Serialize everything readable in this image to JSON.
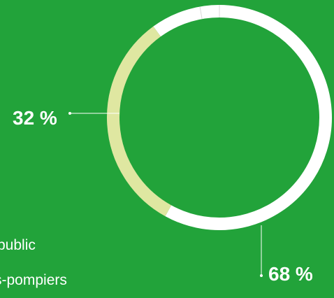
{
  "chart_data": {
    "type": "pie",
    "labels": [
      "public",
      "s-pompiers"
    ],
    "values": [
      68,
      32
    ],
    "value_labels": [
      "68 %",
      "32 %"
    ],
    "colors": [
      "#ffffff",
      "#dfe7a1"
    ],
    "background": "#22a33a",
    "style": "donut"
  },
  "legend": {
    "items": [
      {
        "label": "public"
      },
      {
        "label": "s-pompiers"
      }
    ]
  }
}
